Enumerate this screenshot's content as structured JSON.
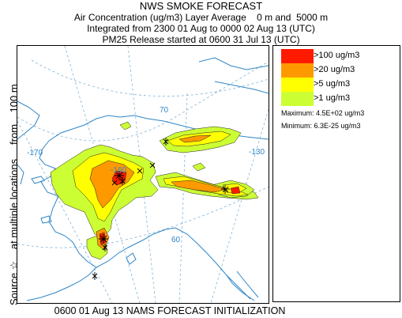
{
  "title": {
    "line1": "NWS SMOKE FORECAST",
    "line2": "Air Concentration (ug/m3) Layer Average    0 m and  5000 m",
    "line3": "Integrated from 2300 01 Aug to 0000 02 Aug 13 (UTC)",
    "line4": "PM25 Release started at 0600 31 Jul 13 (UTC)"
  },
  "side_label": "Source ☆    at multiple locations     from    100 m",
  "footer": "0600 01 Aug 13 NAMS FORECAST INITIALIZATION",
  "map": {
    "graticule_labels": {
      "lon_170": "-170",
      "lon_160": "-160",
      "lon_130": "-130",
      "lat_70": "70",
      "lat_60": "60"
    },
    "colors": {
      "coast": "#2e86c8",
      "graticule": "#7fb3d5",
      "contour": "#222222",
      "source": "#000000"
    }
  },
  "legend": {
    "items": [
      {
        "label": ">100 ug/m3",
        "color": "#ff1a00"
      },
      {
        "label": ">20 ug/m3",
        "color": "#ff9900"
      },
      {
        "label": ">5 ug/m3",
        "color": "#ffff00"
      },
      {
        "label": ">1 ug/m3",
        "color": "#ccff33"
      }
    ],
    "maximum": "Maximum: 4.5E+02 ug/m3",
    "minimum": "Minimum: 6.3E-25 ug/m3"
  }
}
